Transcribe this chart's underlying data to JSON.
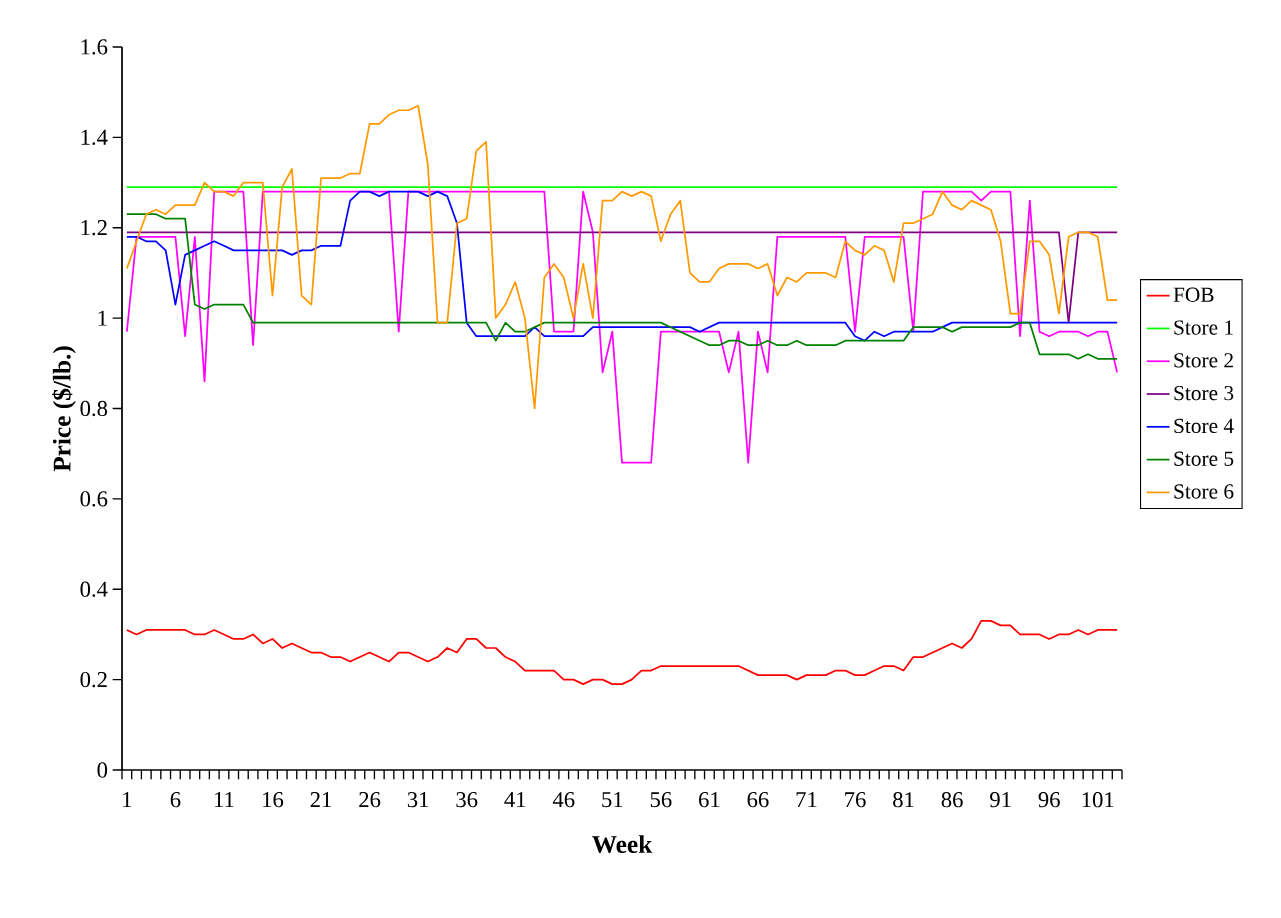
{
  "chart_data": {
    "type": "line",
    "xlabel": "Week",
    "ylabel": "Price ($/lb.)",
    "categories": [
      "1",
      null,
      null,
      null,
      null,
      "6",
      null,
      null,
      null,
      null,
      "11",
      null,
      null,
      null,
      null,
      "16",
      null,
      null,
      null,
      null,
      "21",
      null,
      null,
      null,
      null,
      "26",
      null,
      null,
      null,
      null,
      "31",
      null,
      null,
      null,
      null,
      "36",
      null,
      null,
      null,
      null,
      "41",
      null,
      null,
      null,
      null,
      "46",
      null,
      null,
      null,
      null,
      "51",
      null,
      null,
      null,
      null,
      "56",
      null,
      null,
      null,
      null,
      "61",
      null,
      null,
      null,
      null,
      "66",
      null,
      null,
      null,
      null,
      "71",
      null,
      null,
      null,
      null,
      "76",
      null,
      null,
      null,
      null,
      "81",
      null,
      null,
      null,
      null,
      "86",
      null,
      null,
      null,
      null,
      "91",
      null,
      null,
      null,
      null,
      "96",
      null,
      null,
      null,
      null,
      "101",
      null,
      null
    ],
    "ylim": [
      0,
      1.6
    ],
    "yticks": [
      0,
      0.2,
      0.4,
      0.6,
      0.8,
      1,
      1.2,
      1.4,
      1.6
    ],
    "legend": "right",
    "grid": false,
    "series": [
      {
        "name": "FOB",
        "color": "#ff0000",
        "values": [
          0.31,
          0.3,
          0.31,
          0.31,
          0.31,
          0.31,
          0.31,
          0.3,
          0.3,
          0.31,
          0.3,
          0.29,
          0.29,
          0.3,
          0.28,
          0.29,
          0.27,
          0.28,
          0.27,
          0.26,
          0.26,
          0.25,
          0.25,
          0.24,
          0.25,
          0.26,
          0.25,
          0.24,
          0.26,
          0.26,
          0.25,
          0.24,
          0.25,
          0.27,
          0.26,
          0.29,
          0.29,
          0.27,
          0.27,
          0.25,
          0.24,
          0.22,
          0.22,
          0.22,
          0.22,
          0.2,
          0.2,
          0.19,
          0.2,
          0.2,
          0.19,
          0.19,
          0.2,
          0.22,
          0.22,
          0.23,
          0.23,
          0.23,
          0.23,
          0.23,
          0.23,
          0.23,
          0.23,
          0.23,
          0.22,
          0.21,
          0.21,
          0.21,
          0.21,
          0.2,
          0.21,
          0.21,
          0.21,
          0.22,
          0.22,
          0.21,
          0.21,
          0.22,
          0.23,
          0.23,
          0.22,
          0.25,
          0.25,
          0.26,
          0.27,
          0.28,
          0.27,
          0.29,
          0.33,
          0.33,
          0.32,
          0.32,
          0.3,
          0.3,
          0.3,
          0.29,
          0.3,
          0.3,
          0.31,
          0.3,
          0.31,
          0.31,
          0.31
        ]
      },
      {
        "name": "Store 1",
        "color": "#00ff00",
        "values": [
          1.29,
          1.29,
          1.29,
          1.29,
          1.29,
          1.29,
          1.29,
          1.29,
          1.29,
          1.29,
          1.29,
          1.29,
          1.29,
          1.29,
          1.29,
          1.29,
          1.29,
          1.29,
          1.29,
          1.29,
          1.29,
          1.29,
          1.29,
          1.29,
          1.29,
          1.29,
          1.29,
          1.29,
          1.29,
          1.29,
          1.29,
          1.29,
          1.29,
          1.29,
          1.29,
          1.29,
          1.29,
          1.29,
          1.29,
          1.29,
          1.29,
          1.29,
          1.29,
          1.29,
          1.29,
          1.29,
          1.29,
          1.29,
          1.29,
          1.29,
          1.29,
          1.29,
          1.29,
          1.29,
          1.29,
          1.29,
          1.29,
          1.29,
          1.29,
          1.29,
          1.29,
          1.29,
          1.29,
          1.29,
          1.29,
          1.29,
          1.29,
          1.29,
          1.29,
          1.29,
          1.29,
          1.29,
          1.29,
          1.29,
          1.29,
          1.29,
          1.29,
          1.29,
          1.29,
          1.29,
          1.29,
          1.29,
          1.29,
          1.29,
          1.29,
          1.29,
          1.29,
          1.29,
          1.29,
          1.29,
          1.29,
          1.29,
          1.29,
          1.29,
          1.29,
          1.29,
          1.29,
          1.29,
          1.29,
          1.29,
          1.29,
          1.29,
          1.29
        ]
      },
      {
        "name": "Store 2",
        "color": "#ff00ff",
        "values": [
          0.97,
          1.18,
          1.18,
          1.18,
          1.18,
          1.18,
          0.96,
          1.18,
          0.86,
          1.28,
          1.28,
          1.28,
          1.28,
          0.94,
          1.28,
          1.28,
          1.28,
          1.28,
          1.28,
          1.28,
          1.28,
          1.28,
          1.28,
          1.28,
          1.28,
          1.28,
          1.28,
          1.28,
          0.97,
          1.28,
          1.28,
          1.28,
          1.28,
          1.28,
          1.28,
          1.28,
          1.28,
          1.28,
          1.28,
          1.28,
          1.28,
          1.28,
          1.28,
          1.28,
          0.97,
          0.97,
          0.97,
          1.28,
          1.19,
          0.88,
          0.97,
          0.68,
          0.68,
          0.68,
          0.68,
          0.97,
          0.97,
          0.97,
          0.97,
          0.97,
          0.97,
          0.97,
          0.88,
          0.97,
          0.68,
          0.97,
          0.88,
          1.18,
          1.18,
          1.18,
          1.18,
          1.18,
          1.18,
          1.18,
          1.18,
          0.97,
          1.18,
          1.18,
          1.18,
          1.18,
          1.18,
          0.97,
          1.28,
          1.28,
          1.28,
          1.28,
          1.28,
          1.28,
          1.26,
          1.28,
          1.28,
          1.28,
          0.96,
          1.26,
          0.97,
          0.96,
          0.97,
          0.97,
          0.97,
          0.96,
          0.97,
          0.97,
          0.88
        ]
      },
      {
        "name": "Store 3",
        "color": "#800080",
        "values": [
          1.19,
          1.19,
          1.19,
          1.19,
          1.19,
          1.19,
          1.19,
          1.19,
          1.19,
          1.19,
          1.19,
          1.19,
          1.19,
          1.19,
          1.19,
          1.19,
          1.19,
          1.19,
          1.19,
          1.19,
          1.19,
          1.19,
          1.19,
          1.19,
          1.19,
          1.19,
          1.19,
          1.19,
          1.19,
          1.19,
          1.19,
          1.19,
          1.19,
          1.19,
          1.19,
          1.19,
          1.19,
          1.19,
          1.19,
          1.19,
          1.19,
          1.19,
          1.19,
          1.19,
          1.19,
          1.19,
          1.19,
          1.19,
          1.19,
          1.19,
          1.19,
          1.19,
          1.19,
          1.19,
          1.19,
          1.19,
          1.19,
          1.19,
          1.19,
          1.19,
          1.19,
          1.19,
          1.19,
          1.19,
          1.19,
          1.19,
          1.19,
          1.19,
          1.19,
          1.19,
          1.19,
          1.19,
          1.19,
          1.19,
          1.19,
          1.19,
          1.19,
          1.19,
          1.19,
          1.19,
          1.19,
          1.19,
          1.19,
          1.19,
          1.19,
          1.19,
          1.19,
          1.19,
          1.19,
          1.19,
          1.19,
          1.19,
          1.19,
          1.19,
          1.19,
          1.19,
          1.19,
          0.99,
          1.19,
          1.19,
          1.19,
          1.19,
          1.19
        ]
      },
      {
        "name": "Store 4",
        "color": "#0000ff",
        "values": [
          1.18,
          1.18,
          1.17,
          1.17,
          1.15,
          1.03,
          1.14,
          1.15,
          1.16,
          1.17,
          1.16,
          1.15,
          1.15,
          1.15,
          1.15,
          1.15,
          1.15,
          1.14,
          1.15,
          1.15,
          1.16,
          1.16,
          1.16,
          1.26,
          1.28,
          1.28,
          1.27,
          1.28,
          1.28,
          1.28,
          1.28,
          1.27,
          1.28,
          1.27,
          1.21,
          0.99,
          0.96,
          0.96,
          0.96,
          0.96,
          0.96,
          0.96,
          0.98,
          0.96,
          0.96,
          0.96,
          0.96,
          0.96,
          0.98,
          0.98,
          0.98,
          0.98,
          0.98,
          0.98,
          0.98,
          0.98,
          0.98,
          0.98,
          0.98,
          0.97,
          0.98,
          0.99,
          0.99,
          0.99,
          0.99,
          0.99,
          0.99,
          0.99,
          0.99,
          0.99,
          0.99,
          0.99,
          0.99,
          0.99,
          0.99,
          0.96,
          0.95,
          0.97,
          0.96,
          0.97,
          0.97,
          0.97,
          0.97,
          0.97,
          0.98,
          0.99,
          0.99,
          0.99,
          0.99,
          0.99,
          0.99,
          0.99,
          0.99,
          0.99,
          0.99,
          0.99,
          0.99,
          0.99,
          0.99,
          0.99,
          0.99,
          0.99,
          0.99
        ]
      },
      {
        "name": "Store 5",
        "color": "#008000",
        "values": [
          1.23,
          1.23,
          1.23,
          1.23,
          1.22,
          1.22,
          1.22,
          1.03,
          1.02,
          1.03,
          1.03,
          1.03,
          1.03,
          0.99,
          0.99,
          0.99,
          0.99,
          0.99,
          0.99,
          0.99,
          0.99,
          0.99,
          0.99,
          0.99,
          0.99,
          0.99,
          0.99,
          0.99,
          0.99,
          0.99,
          0.99,
          0.99,
          0.99,
          0.99,
          0.99,
          0.99,
          0.99,
          0.99,
          0.95,
          0.99,
          0.97,
          0.97,
          0.98,
          0.99,
          0.99,
          0.99,
          0.99,
          0.99,
          0.99,
          0.99,
          0.99,
          0.99,
          0.99,
          0.99,
          0.99,
          0.99,
          0.98,
          0.97,
          0.96,
          0.95,
          0.94,
          0.94,
          0.95,
          0.95,
          0.94,
          0.94,
          0.95,
          0.94,
          0.94,
          0.95,
          0.94,
          0.94,
          0.94,
          0.94,
          0.95,
          0.95,
          0.95,
          0.95,
          0.95,
          0.95,
          0.95,
          0.98,
          0.98,
          0.98,
          0.98,
          0.97,
          0.98,
          0.98,
          0.98,
          0.98,
          0.98,
          0.98,
          0.99,
          0.99,
          0.92,
          0.92,
          0.92,
          0.92,
          0.91,
          0.92,
          0.91,
          0.91,
          0.91
        ]
      },
      {
        "name": "Store 6",
        "color": "#ff9900",
        "values": [
          1.11,
          1.17,
          1.23,
          1.24,
          1.23,
          1.25,
          1.25,
          1.25,
          1.3,
          1.28,
          1.28,
          1.27,
          1.3,
          1.3,
          1.3,
          1.05,
          1.29,
          1.33,
          1.05,
          1.03,
          1.31,
          1.31,
          1.31,
          1.32,
          1.32,
          1.43,
          1.43,
          1.45,
          1.46,
          1.46,
          1.47,
          1.34,
          0.99,
          0.99,
          1.21,
          1.22,
          1.37,
          1.39,
          1.0,
          1.03,
          1.08,
          1.0,
          0.8,
          1.09,
          1.12,
          1.09,
          1.0,
          1.12,
          1.0,
          1.26,
          1.26,
          1.28,
          1.27,
          1.28,
          1.27,
          1.17,
          1.23,
          1.26,
          1.1,
          1.08,
          1.08,
          1.11,
          1.12,
          1.12,
          1.12,
          1.11,
          1.12,
          1.05,
          1.09,
          1.08,
          1.1,
          1.1,
          1.1,
          1.09,
          1.17,
          1.15,
          1.14,
          1.16,
          1.15,
          1.08,
          1.21,
          1.21,
          1.22,
          1.23,
          1.28,
          1.25,
          1.24,
          1.26,
          1.25,
          1.24,
          1.17,
          1.01,
          1.01,
          1.17,
          1.17,
          1.14,
          1.01,
          1.18,
          1.19,
          1.19,
          1.18,
          1.04,
          1.04
        ]
      }
    ]
  }
}
